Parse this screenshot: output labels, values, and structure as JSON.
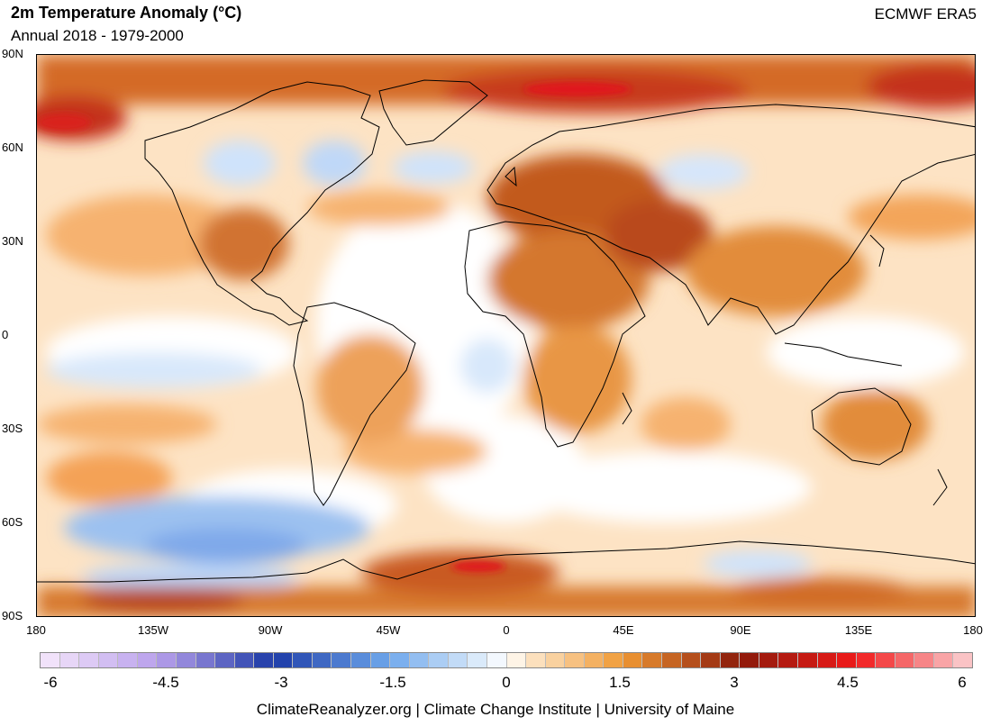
{
  "header": {
    "title": "2m Temperature Anomaly (°C)",
    "subtitle": "Annual 2018 - 1979-2000",
    "source": "ECMWF ERA5"
  },
  "map": {
    "lat_labels": [
      "90N",
      "60N",
      "30N",
      "0",
      "30S",
      "60S",
      "90S"
    ],
    "lon_labels": [
      "180",
      "135W",
      "90W",
      "45W",
      "0",
      "45E",
      "90E",
      "135E",
      "180"
    ],
    "colors": {
      "warm_light": "#fde3c4",
      "warm": "#f5b26b",
      "warm_strong": "#d9782d",
      "hot": "#b4501e",
      "extreme": "#e0161b",
      "neutral": "#ffffff",
      "cool": "#cfe3fb",
      "cold": "#8fb8ee",
      "land_outline": "#000000"
    },
    "anomaly_regions": [
      {
        "name": "Arctic",
        "level": "hot"
      },
      {
        "name": "Central Arctic Ocean",
        "level": "extreme"
      },
      {
        "name": "Europe",
        "level": "hot"
      },
      {
        "name": "North Africa",
        "level": "warm_strong"
      },
      {
        "name": "Eastern Canada",
        "level": "cool"
      },
      {
        "name": "Southern Ocean Pacific sector",
        "level": "cold"
      },
      {
        "name": "Antarctic Peninsula",
        "level": "extreme"
      }
    ]
  },
  "colorbar": {
    "min": -6,
    "max": 6,
    "step": 0.25,
    "tick_labels": [
      "-6",
      "-4.5",
      "-3",
      "-1.5",
      "0",
      "1.5",
      "3",
      "4.5",
      "6"
    ],
    "stops": [
      {
        "v": -6,
        "c": "#f6e8fb"
      },
      {
        "v": -4.5,
        "c": "#b9a0ec"
      },
      {
        "v": -3,
        "c": "#1c3aa6"
      },
      {
        "v": -1.5,
        "c": "#6fa8ec"
      },
      {
        "v": -0.25,
        "c": "#e6f1fc"
      },
      {
        "v": 0,
        "c": "#ffffff"
      },
      {
        "v": 0.25,
        "c": "#fde8cc"
      },
      {
        "v": 1.5,
        "c": "#f09a35"
      },
      {
        "v": 3,
        "c": "#8a1a0a"
      },
      {
        "v": 4.5,
        "c": "#f11a1a"
      },
      {
        "v": 6,
        "c": "#fbd2d4"
      }
    ]
  },
  "footer": {
    "credit": "ClimateReanalyzer.org | Climate Change Institute | University of Maine"
  }
}
